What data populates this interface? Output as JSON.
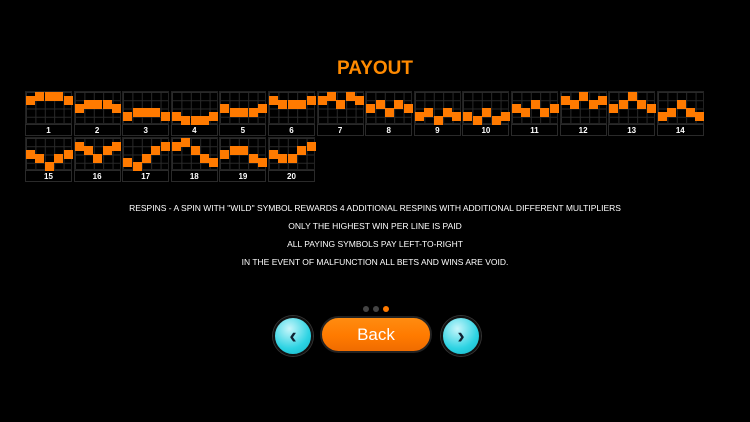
{
  "title": "PAYOUT",
  "colors": {
    "accent": "#ff7a00",
    "button_secondary": "#2dd3e3"
  },
  "lines": [
    {
      "label": "1",
      "rows": [
        1,
        0,
        0,
        0,
        1
      ]
    },
    {
      "label": "2",
      "rows": [
        3,
        2,
        2,
        2,
        3
      ]
    },
    {
      "label": "3",
      "rows": [
        5,
        4,
        4,
        4,
        5
      ]
    },
    {
      "label": "4",
      "rows": [
        5,
        6,
        6,
        6,
        5
      ]
    },
    {
      "label": "5",
      "rows": [
        3,
        4,
        4,
        4,
        3
      ]
    },
    {
      "label": "6",
      "rows": [
        1,
        2,
        2,
        2,
        1
      ]
    },
    {
      "label": "7",
      "rows": [
        1,
        0,
        2,
        0,
        1
      ]
    },
    {
      "label": "8",
      "rows": [
        3,
        2,
        4,
        2,
        3
      ]
    },
    {
      "label": "9",
      "rows": [
        5,
        4,
        6,
        4,
        5
      ]
    },
    {
      "label": "10",
      "rows": [
        5,
        6,
        4,
        6,
        5
      ]
    },
    {
      "label": "11",
      "rows": [
        3,
        4,
        2,
        4,
        3
      ]
    },
    {
      "label": "12",
      "rows": [
        1,
        2,
        0,
        2,
        1
      ]
    },
    {
      "label": "13",
      "rows": [
        3,
        2,
        0,
        2,
        3
      ]
    },
    {
      "label": "14",
      "rows": [
        5,
        4,
        2,
        4,
        5
      ]
    },
    {
      "label": "15",
      "rows": [
        3,
        4,
        6,
        4,
        3
      ]
    },
    {
      "label": "16",
      "rows": [
        1,
        2,
        4,
        2,
        1
      ]
    },
    {
      "label": "17",
      "rows": [
        5,
        6,
        4,
        2,
        1
      ]
    },
    {
      "label": "18",
      "rows": [
        1,
        0,
        2,
        4,
        5
      ]
    },
    {
      "label": "19",
      "rows": [
        3,
        2,
        2,
        4,
        5
      ]
    },
    {
      "label": "20",
      "rows": [
        3,
        4,
        4,
        2,
        1
      ]
    }
  ],
  "rules": [
    "RESPINS - A SPIN WITH \"WILD\" SYMBOL REWARDS 4 ADDITIONAL RESPINS WITH ADDITIONAL DIFFERENT MULTIPLIERS",
    "ONLY THE HIGHEST WIN PER LINE IS PAID",
    "ALL PAYING SYMBOLS PAY LEFT-TO-RIGHT",
    "IN THE EVENT OF MALFUNCTION ALL BETS AND WINS ARE VOID."
  ],
  "pagination": {
    "pages": 3,
    "current": 3
  },
  "nav": {
    "prev_icon": "chevron-left-icon",
    "next_icon": "chevron-right-icon",
    "prev_glyph": "‹",
    "next_glyph": "›",
    "back_label": "Back"
  }
}
